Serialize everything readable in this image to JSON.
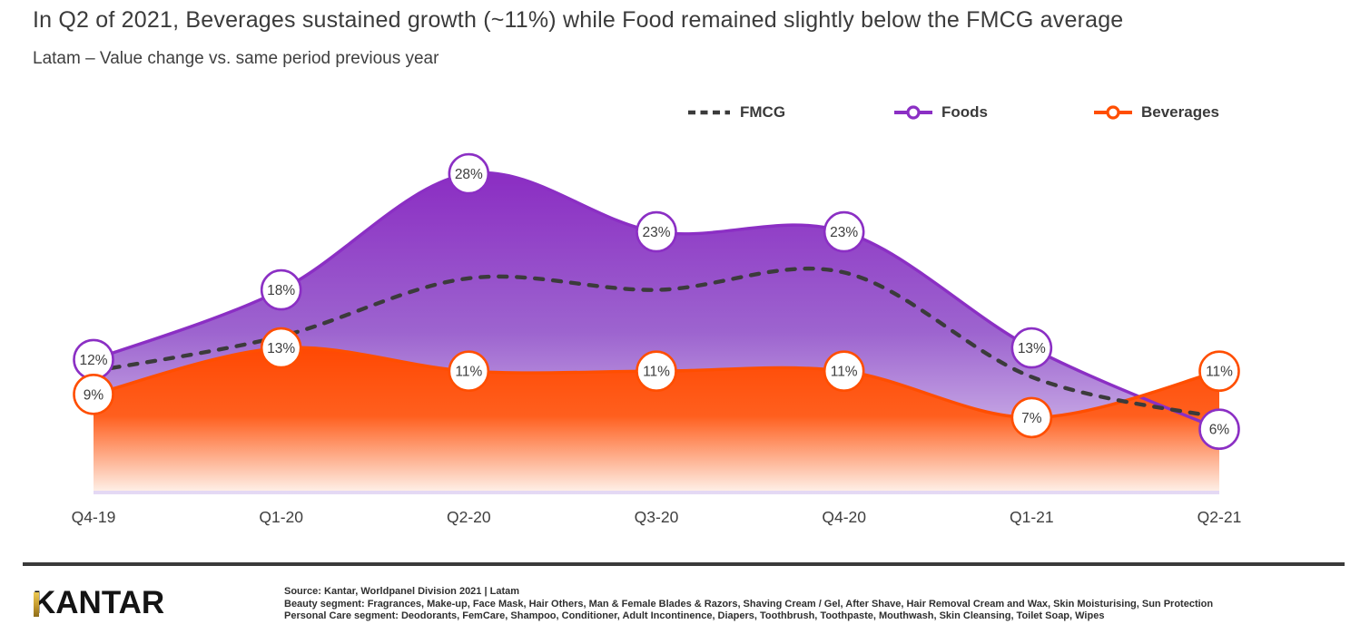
{
  "title": "In Q2 of 2021, Beverages sustained growth (~11%) while Food remained slightly below the FMCG average",
  "subtitle": "Latam – Value change vs. same period previous year",
  "colors": {
    "fmcg": "#3b3b3b",
    "foods": "#8b2fc4",
    "beverages": "#ff4e00",
    "text": "#3d3d3d"
  },
  "chart_data": {
    "type": "area",
    "title": "Latam – Value change vs. same period previous year",
    "categories": [
      "Q4-19",
      "Q1-20",
      "Q2-20",
      "Q3-20",
      "Q4-20",
      "Q1-21",
      "Q2-21"
    ],
    "series": [
      {
        "name": "FMCG",
        "style": "dashed-line",
        "color": "#3b3b3b",
        "values": [
          11,
          14,
          19,
          18,
          19.5,
          10.5,
          7
        ],
        "values_note": "estimated from dashed curve, no data labels shown",
        "point_labels": []
      },
      {
        "name": "Foods",
        "style": "smooth-area",
        "color": "#8b2fc4",
        "area_gradient": [
          "#8a2bc2",
          "#9d64cf",
          "#e6dcf5"
        ],
        "values": [
          12,
          18,
          28,
          23,
          23,
          13,
          6
        ],
        "point_labels": [
          "12%",
          "18%",
          "28%",
          "23%",
          "23%",
          "13%",
          "6%"
        ]
      },
      {
        "name": "Beverages",
        "style": "smooth-area",
        "color": "#ff4e00",
        "area_gradient": [
          "#ff4600",
          "#ff5f1e",
          "#fef0e8"
        ],
        "values": [
          9,
          13,
          11,
          11,
          11,
          7,
          11
        ],
        "point_labels": [
          "9%",
          "13%",
          "11%",
          "11%",
          "11%",
          "7%",
          "11%"
        ]
      }
    ],
    "ylim": [
      0,
      30
    ],
    "grid": false,
    "y_axis_shown": false,
    "legend_position": "top-right",
    "legend": [
      "FMCG",
      "Foods",
      "Beverages"
    ]
  },
  "footer": {
    "logo_text": "KANTAR",
    "source_lines": [
      "Source: Kantar, Worldpanel  Division 2021 | Latam",
      "Beauty segment: Fragrances, Make-up, Face Mask, Hair Others, Man & Female Blades & Razors, Shaving Cream / Gel, After Shave, Hair Removal Cream and Wax, Skin Moisturising, Sun Protection",
      "Personal Care segment: Deodorants, FemCare, Shampoo, Conditioner, Adult Incontinence, Diapers, Toothbrush, Toothpaste, Mouthwash, Skin Cleansing, Toilet Soap, Wipes"
    ]
  }
}
